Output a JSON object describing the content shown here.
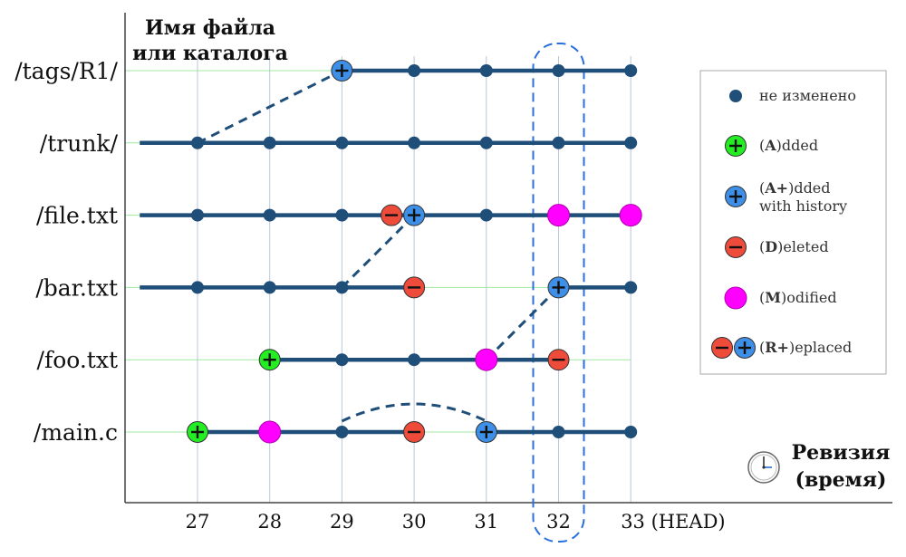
{
  "chart_data": {
    "type": "diagram",
    "ylabel_lines": [
      "Имя файла",
      "или каталога"
    ],
    "xlabel_lines": [
      "Ревизия",
      "(время)"
    ],
    "revisions": [
      "27",
      "28",
      "29",
      "30",
      "31",
      "32",
      "33 (HEAD)"
    ],
    "rows": [
      {
        "path": "/tags/R1/",
        "line_from": 29,
        "line_to": 33,
        "events": [
          {
            "rev": 29,
            "state": "added_history"
          },
          {
            "rev": 30,
            "state": "unchanged"
          },
          {
            "rev": 31,
            "state": "unchanged"
          },
          {
            "rev": 32,
            "state": "unchanged"
          },
          {
            "rev": 33,
            "state": "unchanged"
          }
        ]
      },
      {
        "path": "/trunk/",
        "line_from": 26.2,
        "line_to": 33,
        "events": [
          {
            "rev": 27,
            "state": "unchanged"
          },
          {
            "rev": 28,
            "state": "unchanged"
          },
          {
            "rev": 29,
            "state": "unchanged"
          },
          {
            "rev": 30,
            "state": "unchanged"
          },
          {
            "rev": 31,
            "state": "unchanged"
          },
          {
            "rev": 32,
            "state": "unchanged"
          },
          {
            "rev": 33,
            "state": "unchanged"
          }
        ]
      },
      {
        "path": "/file.txt",
        "line_from": 26.2,
        "line_to": 33,
        "events": [
          {
            "rev": 27,
            "state": "unchanged"
          },
          {
            "rev": 28,
            "state": "unchanged"
          },
          {
            "rev": 29,
            "state": "unchanged"
          },
          {
            "rev": 30,
            "state": "replaced"
          },
          {
            "rev": 31,
            "state": "unchanged"
          },
          {
            "rev": 32,
            "state": "modified"
          },
          {
            "rev": 33,
            "state": "modified"
          }
        ]
      },
      {
        "path": "/bar.txt",
        "line_from": 26.2,
        "line_to": 33,
        "events": [
          {
            "rev": 27,
            "state": "unchanged"
          },
          {
            "rev": 28,
            "state": "unchanged"
          },
          {
            "rev": 29,
            "state": "unchanged"
          },
          {
            "rev": 30,
            "state": "deleted"
          },
          {
            "rev": 32,
            "state": "added_history"
          },
          {
            "rev": 33,
            "state": "unchanged"
          }
        ]
      },
      {
        "path": "/foo.txt",
        "line_from": 28,
        "line_to": 32,
        "events": [
          {
            "rev": 28,
            "state": "added"
          },
          {
            "rev": 29,
            "state": "unchanged"
          },
          {
            "rev": 30,
            "state": "unchanged"
          },
          {
            "rev": 31,
            "state": "modified"
          },
          {
            "rev": 32,
            "state": "deleted"
          }
        ]
      },
      {
        "path": "/main.c",
        "line_from": 27,
        "line_to": 33,
        "events": [
          {
            "rev": 27,
            "state": "added"
          },
          {
            "rev": 28,
            "state": "modified"
          },
          {
            "rev": 29,
            "state": "unchanged"
          },
          {
            "rev": 30,
            "state": "deleted"
          },
          {
            "rev": 31,
            "state": "added_history"
          },
          {
            "rev": 32,
            "state": "unchanged"
          },
          {
            "rev": 33,
            "state": "unchanged"
          }
        ]
      }
    ],
    "copy_links": [
      {
        "from_row": 1,
        "from_rev": 27,
        "to_row": 0,
        "to_rev": 29,
        "shape": "straight"
      },
      {
        "from_row": 3,
        "from_rev": 29,
        "to_row": 2,
        "to_rev": 30,
        "shape": "straight"
      },
      {
        "from_row": 4,
        "from_rev": 31,
        "to_row": 3,
        "to_rev": 32,
        "shape": "straight"
      },
      {
        "from_row": 5,
        "from_rev": 29,
        "to_row": 5,
        "to_rev": 31,
        "shape": "arc"
      }
    ],
    "highlight_revision": 32,
    "legend": [
      {
        "state": "unchanged",
        "parts": [
          {
            "text": "не изменено",
            "bold": false
          }
        ]
      },
      {
        "state": "added",
        "parts": [
          {
            "text": "(",
            "bold": false
          },
          {
            "text": "A",
            "bold": true
          },
          {
            "text": ")dded",
            "bold": false
          }
        ]
      },
      {
        "state": "added_history",
        "parts": [
          {
            "text": "(",
            "bold": false
          },
          {
            "text": "A+",
            "bold": true
          },
          {
            "text": ")dded",
            "bold": false
          }
        ],
        "line2": "with history"
      },
      {
        "state": "deleted",
        "parts": [
          {
            "text": "(",
            "bold": false
          },
          {
            "text": "D",
            "bold": true
          },
          {
            "text": ")eleted",
            "bold": false
          }
        ]
      },
      {
        "state": "modified",
        "parts": [
          {
            "text": "(",
            "bold": false
          },
          {
            "text": "M",
            "bold": true
          },
          {
            "text": ")odified",
            "bold": false
          }
        ]
      },
      {
        "state": "replaced",
        "parts": [
          {
            "text": "(",
            "bold": false
          },
          {
            "text": "R+",
            "bold": true
          },
          {
            "text": ")eplaced",
            "bold": false
          }
        ]
      }
    ],
    "colors": {
      "line": "#1f4e79",
      "unchanged": "#1f4e79",
      "added": "#22ee22",
      "added_history": "#3d8fe8",
      "deleted": "#ee4b3b",
      "modified": "#ff00ff",
      "highlight": "#2a6fdb",
      "row_grid": "#9fe89f",
      "col_grid": "#b9c6dc"
    }
  }
}
